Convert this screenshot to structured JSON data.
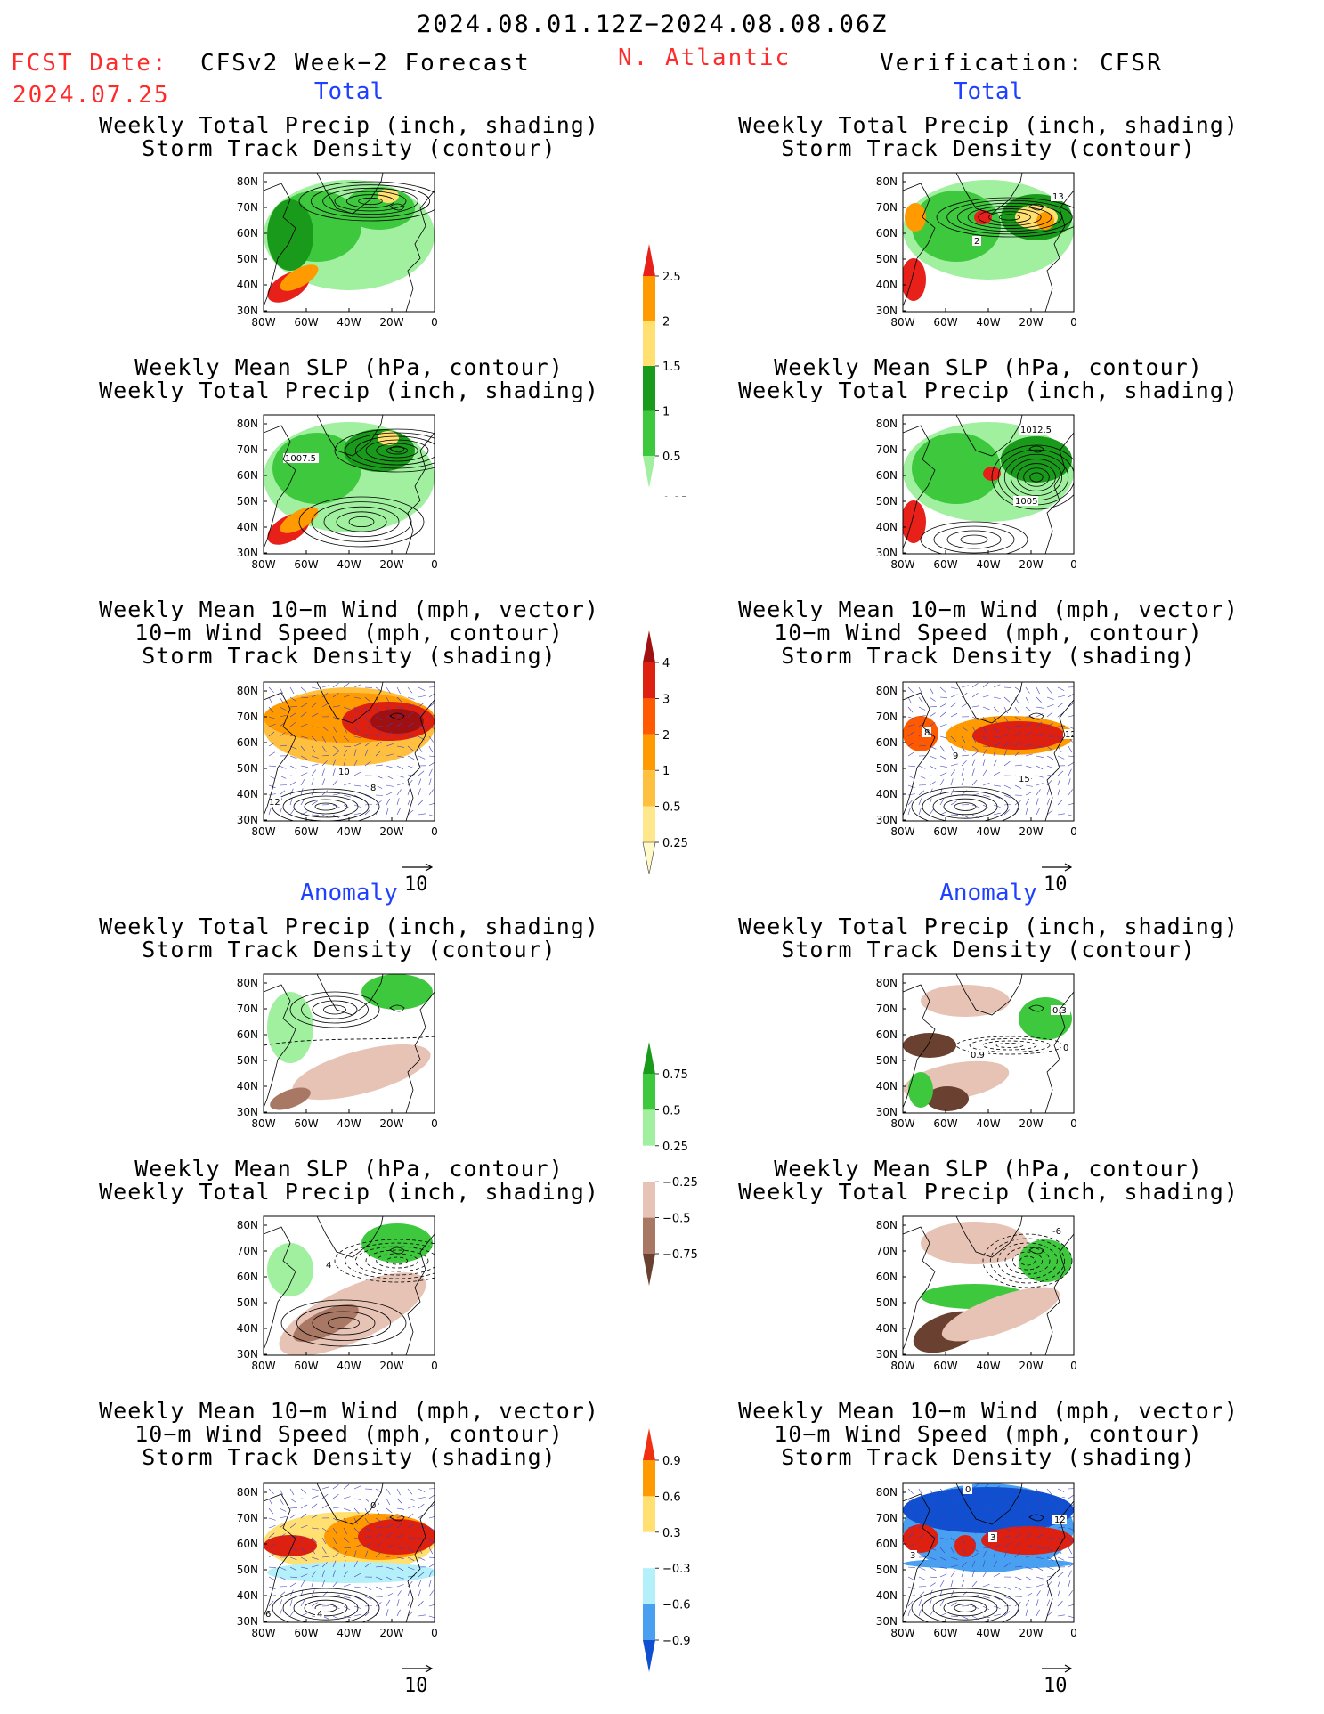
{
  "header": {
    "time_range": "2024.08.01.12Z−2024.08.08.06Z",
    "fcst_date_label": "FCST Date:",
    "fcst_date_value": "2024.07.25",
    "model": "CFSv2 Week−2 Forecast",
    "region": "N. Atlantic",
    "verification": "Verification: CFSR"
  },
  "sections": {
    "total_left": "Total",
    "total_right": "Total",
    "anomaly_left": "Anomaly",
    "anomaly_right": "Anomaly"
  },
  "panel_titles": {
    "precip_storm": [
      "Weekly Total Precip (inch, shading)",
      "Storm Track Density (contour)"
    ],
    "slp_precip": [
      "Weekly Mean SLP (hPa, contour)",
      "Weekly Total Precip (inch, shading)"
    ],
    "wind_storm": [
      "Weekly Mean 10−m Wind (mph, vector)",
      "10−m Wind Speed (mph, contour)",
      "Storm Track Density (shading)"
    ]
  },
  "axes": {
    "lat_labels": [
      "80N",
      "70N",
      "60N",
      "50N",
      "40N",
      "30N"
    ],
    "lon_labels": [
      "80W",
      "60W",
      "40W",
      "20W",
      "0"
    ]
  },
  "vector_reference": "10",
  "contour_labels": {
    "fc_total_slp": "1007.5",
    "ver_total_storm": [
      "13",
      "2"
    ],
    "ver_total_slp": [
      "1012.5",
      "1005"
    ],
    "fc_total_wind": [
      "10",
      "8",
      "12"
    ],
    "ver_total_wind": [
      "8",
      "9",
      "15",
      "12"
    ],
    "ver_anom_storm": [
      "0.3",
      "0.9",
      "0"
    ],
    "fc_anom_slp": [
      "4"
    ],
    "ver_anom_slp": [
      "-6"
    ],
    "fc_anom_wind": [
      "0",
      "4",
      "6"
    ],
    "ver_anom_wind": [
      "0",
      "12",
      "3",
      "3"
    ]
  },
  "colorbars": {
    "total_precip": {
      "labels": [
        "2.5",
        "2",
        "1.5",
        "1",
        "0.5",
        "0.25"
      ],
      "colors": [
        "#e8201a",
        "#ff9a00",
        "#ffe071",
        "#1a9a1a",
        "#3ec83e",
        "#a0f0a0"
      ]
    },
    "total_storm": {
      "labels": [
        "4",
        "3",
        "2",
        "1",
        "0.5",
        "0.25"
      ],
      "colors": [
        "#a01010",
        "#dd2010",
        "#ff5a00",
        "#ff9a00",
        "#ffc040",
        "#ffe88c",
        "#fffac8"
      ]
    },
    "anom_precip": {
      "labels": [
        "0.75",
        "0.5",
        "0.25",
        "−0.25",
        "−0.5",
        "−0.75"
      ],
      "colors": [
        "#1a9a1a",
        "#3ec83e",
        "#a0f0a0",
        "#ffffff",
        "#e6c3b4",
        "#a87864",
        "#6a4030"
      ]
    },
    "anom_storm": {
      "labels": [
        "0.9",
        "0.6",
        "0.3",
        "−0.3",
        "−0.6",
        "−0.9"
      ],
      "colors": [
        "#f03010",
        "#ff9a00",
        "#ffe070",
        "#ffffff",
        "#b4f0fa",
        "#4aa0f0",
        "#1050d0"
      ]
    }
  }
}
